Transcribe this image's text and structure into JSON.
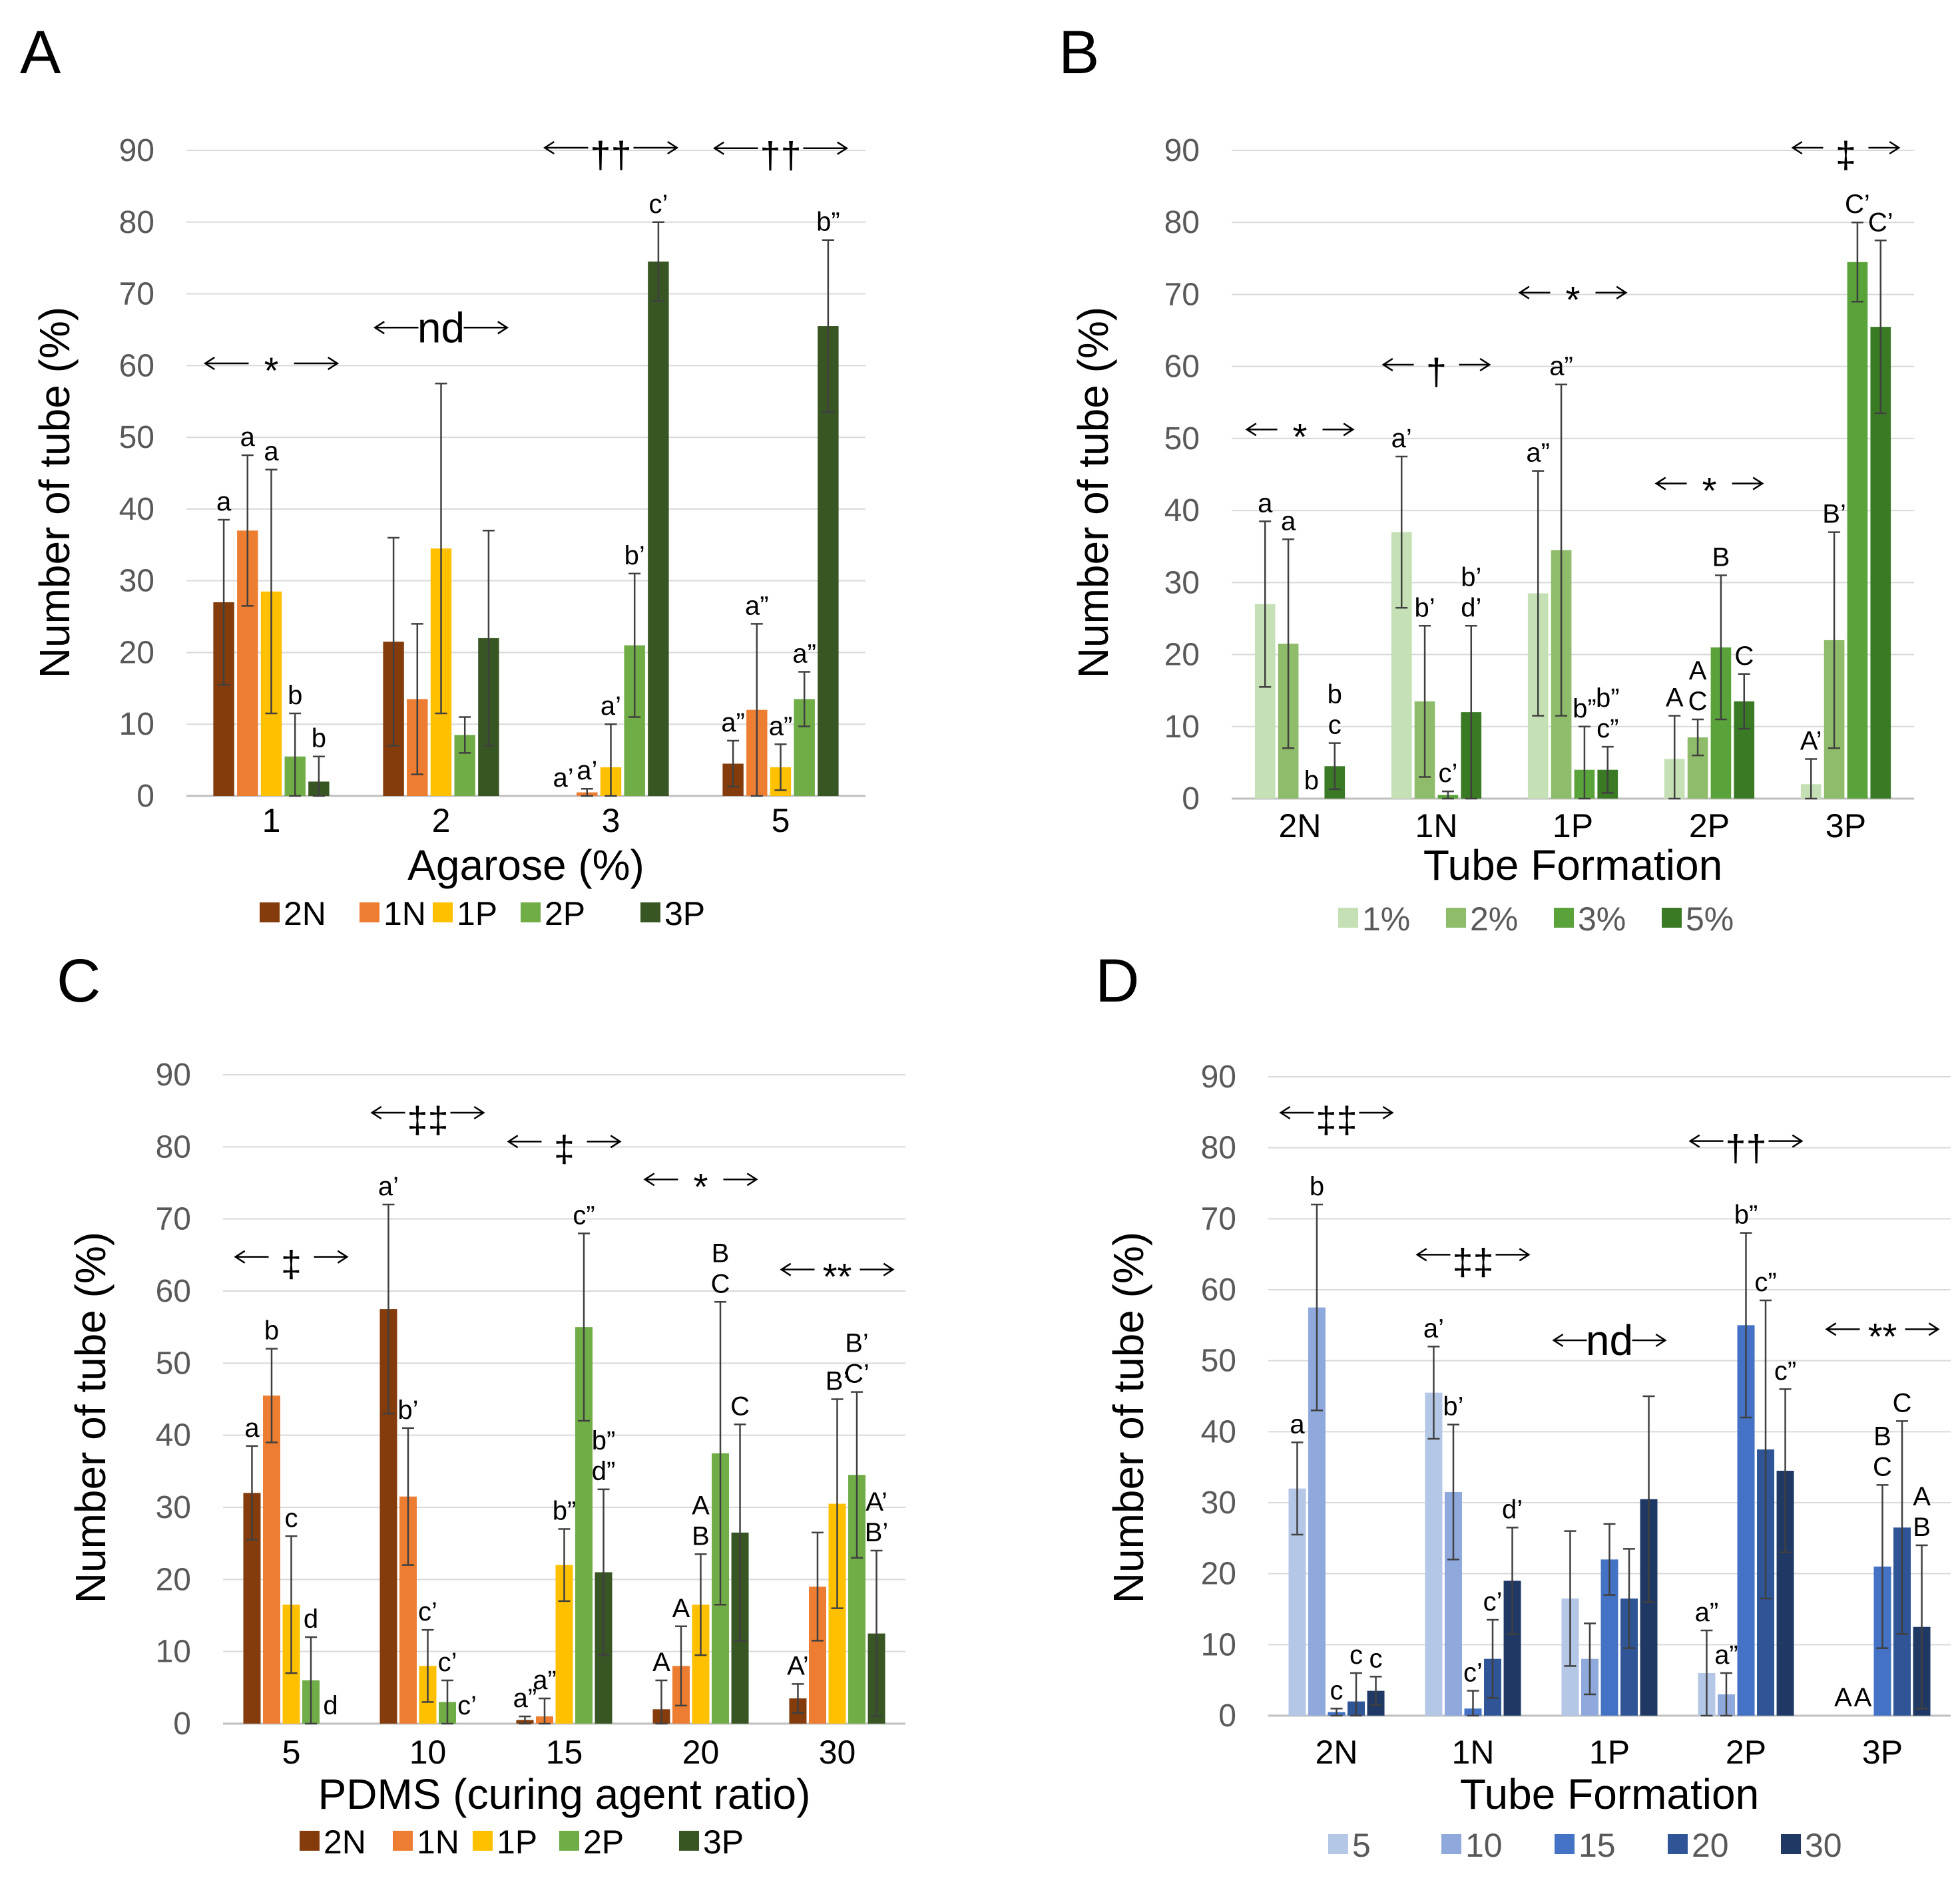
{
  "colors": {
    "agarose": [
      "#843c0c",
      "#ed7d31",
      "#ffc000",
      "#70ad47",
      "#375623"
    ],
    "conc": [
      "#c5e0b4",
      "#8fbc6a",
      "#5aa33a",
      "#3a7a25"
    ],
    "pdms_ratio": [
      "#b4c7e7",
      "#8fa9dc",
      "#4472c4",
      "#2f5597",
      "#203864"
    ],
    "errorbar": "#404040",
    "grid": "#d9d9d9",
    "axis_text": "#595959"
  },
  "chart_data": [
    {
      "panel": "A",
      "type": "bar",
      "xlabel": "Agarose (%)",
      "ylabel": "Number of tube (%)",
      "ylim": [
        0,
        90
      ],
      "yticks": [
        "0",
        "10",
        "20",
        "30",
        "40",
        "50",
        "60",
        "70",
        "80",
        "90"
      ],
      "categories": [
        "1",
        "2",
        "3",
        "5"
      ],
      "series": [
        {
          "name": "2N",
          "values": [
            27,
            21.5,
            0,
            4.5
          ],
          "err": [
            11.5,
            14.5,
            0,
            3.2
          ],
          "labels": [
            "a",
            "",
            "a’",
            "a”"
          ]
        },
        {
          "name": "1N",
          "values": [
            37,
            13.5,
            0.5,
            12
          ],
          "err": [
            10.5,
            10.5,
            0.5,
            12
          ],
          "labels": [
            "a",
            "",
            "a’",
            "a”"
          ]
        },
        {
          "name": "1P",
          "values": [
            28.5,
            34.5,
            4,
            4
          ],
          "err": [
            17,
            23,
            6,
            3.2
          ],
          "labels": [
            "a",
            "",
            "a’",
            "a”"
          ]
        },
        {
          "name": "2P",
          "values": [
            5.5,
            8.5,
            21,
            13.5
          ],
          "err": [
            6,
            2.5,
            10,
            3.8
          ],
          "labels": [
            "b",
            "",
            "b’",
            "a”"
          ]
        },
        {
          "name": "3P",
          "values": [
            2,
            22,
            74.5,
            65.5
          ],
          "err": [
            3.5,
            15,
            5.5,
            12
          ],
          "labels": [
            "b",
            "",
            "c’",
            "b”"
          ]
        }
      ],
      "group_annotations": [
        "* ",
        "nd",
        "††",
        "††"
      ],
      "legend": [
        "2N",
        "1N",
        "1P",
        "2P",
        "3P"
      ]
    },
    {
      "panel": "B",
      "type": "bar",
      "xlabel": "Tube Formation",
      "ylabel": "Number of tube (%)",
      "ylim": [
        0,
        90
      ],
      "yticks": [
        "0",
        "10",
        "20",
        "30",
        "40",
        "50",
        "60",
        "70",
        "80",
        "90"
      ],
      "categories": [
        "2N",
        "1N",
        "1P",
        "2P",
        "3P"
      ],
      "series": [
        {
          "name": "1%",
          "values": [
            27,
            37,
            28.5,
            5.5,
            2
          ],
          "err": [
            11.5,
            10.5,
            17,
            6,
            3.5
          ],
          "labels": [
            "a",
            "a’",
            "a”",
            "A",
            "A’"
          ]
        },
        {
          "name": "2%",
          "values": [
            21.5,
            13.5,
            34.5,
            8.5,
            22
          ],
          "err": [
            14.5,
            10.5,
            23,
            2.5,
            15
          ],
          "labels": [
            "a",
            "b’",
            "a”",
            "A C",
            "B’"
          ]
        },
        {
          "name": "3%",
          "values": [
            0,
            0.5,
            4,
            21,
            74.5
          ],
          "err": [
            0,
            0.5,
            6,
            10,
            5.5
          ],
          "labels": [
            "b",
            "c’",
            "b”",
            "B",
            "C’"
          ]
        },
        {
          "name": "5%",
          "values": [
            4.5,
            12,
            4,
            13.5,
            65.5
          ],
          "err": [
            3.2,
            12,
            3.2,
            3.8,
            12
          ],
          "labels": [
            "b c",
            "b’ d’",
            "b” c”",
            "C",
            "C’"
          ]
        }
      ],
      "group_annotations": [
        "* ",
        "†",
        "* ",
        "* ",
        "‡"
      ],
      "legend": [
        "1%",
        "2%",
        "3%",
        "5%"
      ]
    },
    {
      "panel": "C",
      "type": "bar",
      "xlabel": "PDMS (curing agent ratio)",
      "ylabel": "Number of tube (%)",
      "ylim": [
        0,
        90
      ],
      "yticks": [
        "0",
        "10",
        "20",
        "30",
        "40",
        "50",
        "60",
        "70",
        "80",
        "90"
      ],
      "categories": [
        "5",
        "10",
        "15",
        "20",
        "30"
      ],
      "series": [
        {
          "name": "2N",
          "values": [
            32,
            57.5,
            0.5,
            2,
            3.5
          ],
          "err": [
            6.5,
            14.5,
            0.5,
            4,
            2
          ],
          "labels": [
            "a",
            "a’",
            "a”",
            "A",
            "A’"
          ]
        },
        {
          "name": "1N",
          "values": [
            45.5,
            31.5,
            1,
            8,
            19
          ],
          "err": [
            6.5,
            9.5,
            2.5,
            5.5,
            7.5
          ],
          "labels": [
            "b",
            "b’",
            "a”",
            "A",
            ""
          ]
        },
        {
          "name": "1P",
          "values": [
            16.5,
            8,
            22,
            16.5,
            30.5
          ],
          "err": [
            9.5,
            5,
            5,
            7,
            14.5
          ],
          "labels": [
            "c",
            "c’",
            "b”",
            "A B",
            "B’"
          ]
        },
        {
          "name": "2P",
          "values": [
            6,
            3,
            55,
            37.5,
            34.5
          ],
          "err": [
            6,
            3,
            13,
            21,
            11.5
          ],
          "labels": [
            "d",
            "c’",
            "c”",
            "B C",
            "B’ C’"
          ]
        },
        {
          "name": "3P",
          "values": [
            0,
            0,
            21,
            26.5,
            12.5
          ],
          "err": [
            0,
            0,
            11.5,
            15,
            11.5
          ],
          "labels": [
            "d",
            "c’",
            "b” d”",
            "C",
            "A’ B’"
          ]
        }
      ],
      "group_annotations": [
        "‡",
        "‡‡",
        "‡",
        "* ",
        "**"
      ],
      "legend": [
        "2N",
        "1N",
        "1P",
        "2P",
        "3P"
      ]
    },
    {
      "panel": "D",
      "type": "bar",
      "xlabel": "Tube Formation",
      "ylabel": "Number of tube (%)",
      "ylim": [
        0,
        90
      ],
      "yticks": [
        "0",
        "10",
        "20",
        "30",
        "40",
        "50",
        "60",
        "70",
        "80",
        "90"
      ],
      "categories": [
        "2N",
        "1N",
        "1P",
        "2P",
        "3P"
      ],
      "series": [
        {
          "name": "5",
          "values": [
            32,
            45.5,
            16.5,
            6,
            0
          ],
          "err": [
            6.5,
            6.5,
            9.5,
            6,
            0
          ],
          "labels": [
            "a",
            "a’",
            "",
            "a”",
            "A"
          ]
        },
        {
          "name": "10",
          "values": [
            57.5,
            31.5,
            8,
            3,
            0
          ],
          "err": [
            14.5,
            9.5,
            5,
            3,
            0
          ],
          "labels": [
            "b",
            "b’",
            "",
            "a”",
            "A"
          ]
        },
        {
          "name": "15",
          "values": [
            0.5,
            1,
            22,
            55,
            21
          ],
          "err": [
            0.5,
            2.5,
            5,
            13,
            11.5
          ],
          "labels": [
            "c",
            "c’",
            "",
            "b”",
            "B C"
          ]
        },
        {
          "name": "20",
          "values": [
            2,
            8,
            16.5,
            37.5,
            26.5
          ],
          "err": [
            4,
            5.5,
            7,
            21,
            15
          ],
          "labels": [
            "c",
            "c’",
            "",
            "c”",
            "C"
          ]
        },
        {
          "name": "30",
          "values": [
            3.5,
            19,
            30.5,
            34.5,
            12.5
          ],
          "err": [
            2,
            7.5,
            14.5,
            11.5,
            11.5
          ],
          "labels": [
            "c",
            "d’",
            "",
            "c”",
            "A B"
          ]
        }
      ],
      "group_annotations": [
        "‡‡",
        "‡‡",
        "nd",
        "††",
        "**"
      ],
      "legend": [
        "5",
        "10",
        "15",
        "20",
        "30"
      ]
    }
  ]
}
